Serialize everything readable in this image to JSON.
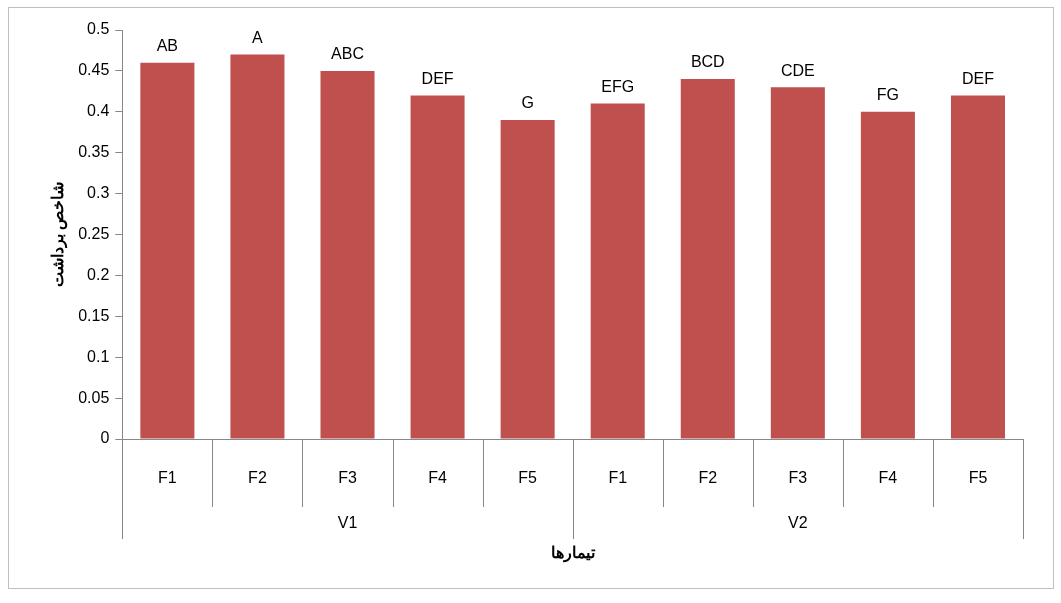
{
  "chart_data": {
    "type": "bar",
    "xlabel": "تیمارها",
    "ylabel": "شاخص برداشت",
    "categories": [
      "F1",
      "F2",
      "F3",
      "F4",
      "F5",
      "F1",
      "F2",
      "F3",
      "F4",
      "F5"
    ],
    "values": [
      0.46,
      0.47,
      0.45,
      0.42,
      0.39,
      0.41,
      0.44,
      0.43,
      0.4,
      0.42
    ],
    "value_labels": [
      "AB",
      "A",
      "ABC",
      "DEF",
      "G",
      "EFG",
      "BCD",
      "CDE",
      "FG",
      "DEF"
    ],
    "color": "#c0504d",
    "ylim": [
      0,
      0.5
    ],
    "yticks": [
      0,
      0.05,
      0.1,
      0.15,
      0.2,
      0.25,
      0.3,
      0.35,
      0.4,
      0.45,
      0.5
    ],
    "annotations": [
      "V1",
      "V2"
    ]
  }
}
